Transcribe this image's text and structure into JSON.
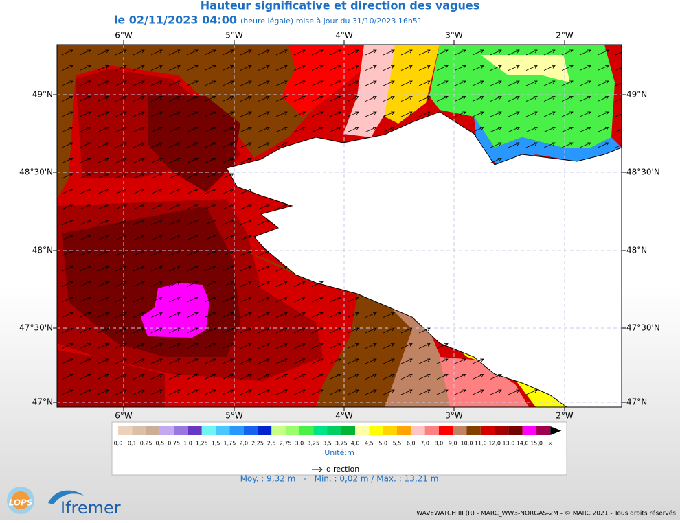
{
  "header": {
    "title": "Hauteur significative et direction des vagues",
    "date": "le 02/11/2023 04:00",
    "update": "(heure légale) mise à jour du 31/10/2023 16h51"
  },
  "map": {
    "lon_labels": [
      "6°W",
      "5°W",
      "4°W",
      "3°W",
      "2°W"
    ],
    "lat_labels": [
      "49°N",
      "48°30'N",
      "48°N",
      "47°30'N",
      "47°N"
    ]
  },
  "legend": {
    "colors": [
      "#ecd2bc",
      "#dcc0a6",
      "#ccae98",
      "#c4a8f0",
      "#9878e0",
      "#6838c4",
      "#70f4f4",
      "#48c8ff",
      "#2898ff",
      "#1464f0",
      "#0024d0",
      "#c8ff88",
      "#98ff68",
      "#48f048",
      "#00e488",
      "#00d064",
      "#00b434",
      "#ffffa8",
      "#ffff00",
      "#ffd400",
      "#ffa400",
      "#ffc4c4",
      "#ff8080",
      "#ff0000",
      "#c08464",
      "#844000",
      "#d40000",
      "#a40000",
      "#740000",
      "#ff00ff",
      "#a00050"
    ],
    "labels": [
      "0,0",
      "0,1",
      "0,25",
      "0,5",
      "0,75",
      "1,0",
      "1,25",
      "1,5",
      "1,75",
      "2,0",
      "2,25",
      "2,5",
      "2,75",
      "3,0",
      "3,25",
      "3,5",
      "3,75",
      "4,0",
      "4,5",
      "5,0",
      "5,5",
      "6,0",
      "7,0",
      "8,0",
      "9,0",
      "10,0",
      "11,0",
      "12,0",
      "13,0",
      "14,0",
      "15,0",
      "∞"
    ],
    "unit": "Unité:m",
    "direction": "direction"
  },
  "stats": "Moy. : 9,32 m   -   Min. : 0,02 m / Max. : 13,21 m",
  "logos": {
    "lops": "LOPS",
    "ifremer": "Ifremer"
  },
  "footer": "WAVEWATCH III (R) - MARC_WW3-NORGAS-2M - © MARC 2021 - Tous droits réservés"
}
